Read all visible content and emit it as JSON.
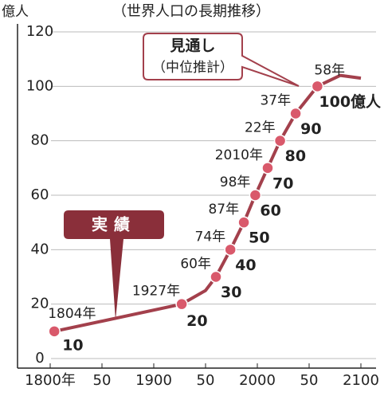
{
  "chart_data": {
    "type": "line",
    "title": "（世界人口の長期推移）",
    "y_label": "億人",
    "x": [
      1804,
      1927,
      1950,
      1960,
      1974,
      1987,
      1998,
      2010,
      2022,
      2037,
      2058,
      2080,
      2100
    ],
    "values": [
      10,
      20,
      25,
      30,
      40,
      50,
      60,
      70,
      80,
      90,
      100,
      104,
      103
    ],
    "point_labels": [
      "1804年",
      "1927年",
      null,
      "60年",
      "74年",
      "87年",
      "98年",
      "2010年",
      "22年",
      "37年",
      "58年",
      null,
      null
    ],
    "value_labels": [
      "10",
      "20",
      null,
      "30",
      "40",
      "50",
      "60",
      "70",
      "80",
      "90",
      "100億人",
      null,
      null
    ],
    "color": "#a3404c",
    "marker_color": "#d9596b",
    "xlim": [
      1800,
      2100
    ],
    "ylim": [
      0,
      120
    ],
    "xticks": [
      {
        "value": 1800,
        "label": "1800年"
      },
      {
        "value": 1850,
        "label": "50"
      },
      1900,
      {
        "value": 1950,
        "label": "50"
      },
      2000,
      {
        "value": 2050,
        "label": "50"
      },
      2100
    ],
    "yticks": [
      0,
      20,
      40,
      60,
      80,
      100,
      120
    ],
    "grid": true,
    "annotations": [
      {
        "text": "実績"
      },
      {
        "text": "見通し",
        "subtext": "（中位推計）"
      }
    ]
  }
}
